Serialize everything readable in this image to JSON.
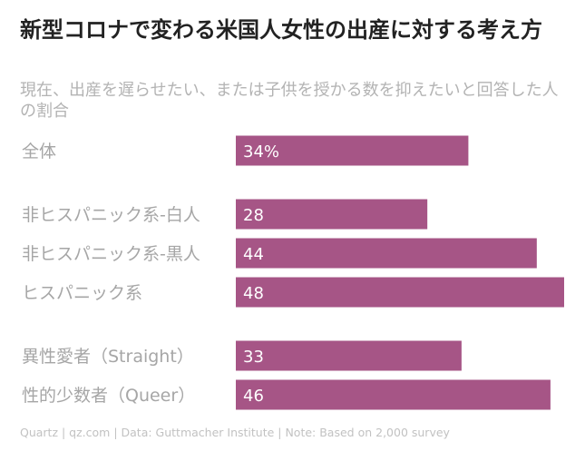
{
  "title": "新型コロナで変わる米国人女性の出産に対する考え方",
  "subtitle": "現在、出産を遅らせたい、または子供を授かる数を抑えたいと回答した人の割合",
  "footer": "Quartz | qz.com | Data: Guttmacher Institute | Note: Based on 2,000 survey",
  "colors": {
    "bar": "#a65586",
    "bar_label": "#ffffff",
    "category_label": "#a6a6a6"
  },
  "chart_data": {
    "type": "bar",
    "orientation": "horizontal",
    "categories": [
      "全体",
      "非ヒスパニック系-白人",
      "非ヒスパニック系-黒人",
      "ヒスパニック系",
      "異性愛者（Straight）",
      "性的少数者（Queer）"
    ],
    "values": [
      34,
      28,
      44,
      48,
      33,
      46
    ],
    "data_labels": [
      "34%",
      "28",
      "44",
      "48",
      "33",
      "46"
    ],
    "groups": [
      [
        0
      ],
      [
        1,
        2,
        3
      ],
      [
        4,
        5
      ]
    ],
    "xlim": [
      0,
      48
    ],
    "grid": false,
    "legend": false
  }
}
